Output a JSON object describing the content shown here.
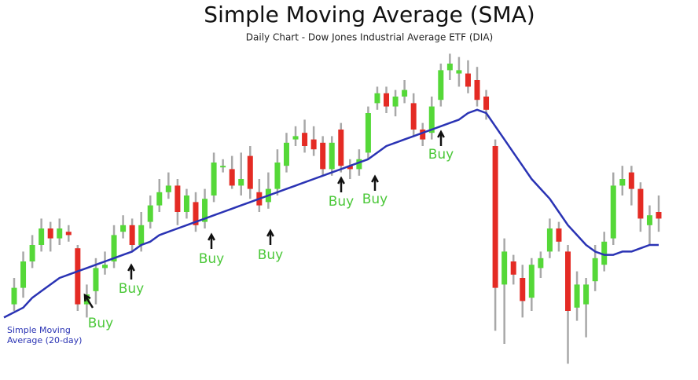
{
  "chart_data": {
    "type": "candlestick",
    "title": "Simple Moving Average (SMA)",
    "subtitle": "Daily Chart - Dow Jones Industrial Average ETF (DIA)",
    "ylim": [
      0,
      100
    ],
    "up_color": "#55d838",
    "down_color": "#e42b24",
    "wick_color": "#a8a8a8",
    "open": [
      22,
      27,
      35,
      40,
      45,
      42,
      44,
      39,
      22,
      26,
      33,
      35,
      44,
      46,
      40,
      47,
      52,
      56,
      58,
      50,
      53,
      47,
      55,
      64,
      63,
      58,
      67,
      56,
      53,
      57,
      64,
      72,
      74,
      72,
      71,
      63,
      75,
      64,
      63,
      68,
      83,
      86,
      82,
      85,
      83,
      75,
      74,
      84,
      93,
      92,
      92,
      90,
      85,
      70,
      28,
      35,
      30,
      24,
      33,
      38,
      45,
      38,
      21,
      22,
      29,
      34,
      42,
      58,
      62,
      57,
      46,
      50
    ],
    "high": [
      30,
      38,
      43,
      48,
      47,
      48,
      46,
      40,
      28,
      36,
      38,
      46,
      49,
      48,
      50,
      55,
      60,
      62,
      60,
      57,
      56,
      57,
      68,
      66,
      67,
      68,
      70,
      60,
      62,
      69,
      74,
      76,
      78,
      76,
      73,
      73,
      77,
      66,
      69,
      82,
      88,
      88,
      87,
      90,
      86,
      77,
      85,
      95,
      98,
      97,
      96,
      94,
      87,
      72,
      42,
      37,
      34,
      36,
      38,
      48,
      47,
      40,
      32,
      30,
      40,
      44,
      62,
      64,
      64,
      59,
      52,
      55
    ],
    "low": [
      20,
      24,
      33,
      38,
      38,
      40,
      41,
      20,
      18,
      22,
      31,
      33,
      42,
      38,
      38,
      45,
      50,
      54,
      46,
      48,
      44,
      45,
      53,
      62,
      57,
      55,
      54,
      50,
      51,
      55,
      62,
      70,
      68,
      67,
      61,
      61,
      62,
      60,
      61,
      66,
      81,
      80,
      79,
      83,
      73,
      70,
      72,
      82,
      90,
      88,
      86,
      82,
      78,
      14,
      10,
      28,
      18,
      20,
      30,
      36,
      38,
      4,
      17,
      12,
      26,
      32,
      40,
      55,
      52,
      44,
      40,
      44
    ],
    "close": [
      27,
      35,
      40,
      45,
      42,
      45,
      43,
      22,
      25,
      33,
      34,
      43,
      46,
      40,
      46,
      52,
      56,
      58,
      50,
      55,
      46,
      54,
      65,
      64,
      58,
      60,
      57,
      52,
      57,
      65,
      71,
      73,
      70,
      69,
      63,
      71,
      64,
      63,
      66,
      80,
      86,
      82,
      85,
      87,
      75,
      72,
      82,
      93,
      95,
      93,
      88,
      84,
      81,
      27,
      38,
      31,
      23,
      34,
      36,
      45,
      41,
      20,
      28,
      28,
      36,
      41,
      58,
      60,
      57,
      48,
      49,
      48
    ],
    "series": [
      {
        "name": "Simple Moving Average (20-day)",
        "color": "#2a33b4",
        "values": [
          18,
          21,
          24,
          26,
          28,
          30,
          31,
          32,
          33,
          34,
          35,
          36,
          37,
          38,
          40,
          41,
          43,
          44,
          45,
          46,
          47,
          48,
          49,
          50,
          51,
          52,
          53,
          54,
          55,
          56,
          57,
          58,
          59,
          60,
          61,
          62,
          63,
          64,
          65,
          66,
          68,
          70,
          71,
          72,
          73,
          74,
          75,
          76,
          77,
          78,
          80,
          81,
          80,
          76,
          72,
          68,
          64,
          60,
          57,
          54,
          50,
          46,
          43,
          40,
          38,
          37,
          37,
          38,
          38,
          39,
          40,
          40
        ]
      }
    ],
    "annotations": [
      "Buy",
      "Buy",
      "Buy",
      "Buy",
      "Buy",
      "Buy",
      "Buy"
    ]
  }
}
